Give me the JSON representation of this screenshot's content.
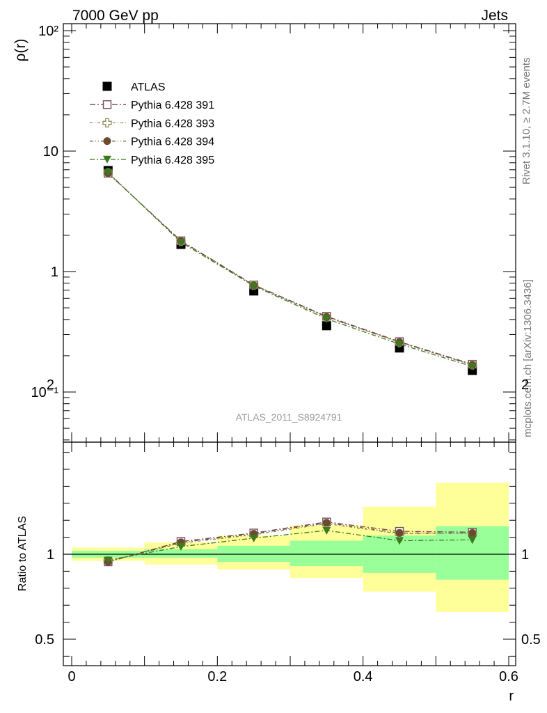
{
  "header": {
    "energy_label": "7000 GeV pp",
    "process_label": "Jets"
  },
  "side_labels": {
    "rivet": "Rivet 3.1.10, ≥ 2.7M events",
    "mcplots": "mcplots.cern.ch [arXiv:1306.3436]"
  },
  "analysis_label": "ATLAS_2011_S8924791",
  "colors": {
    "atlas": "#000000",
    "p391": "#7a4a5e",
    "p393": "#8c8c5a",
    "p394": "#6b4a2e",
    "p395": "#3d7a1e",
    "band_inner": "#99ff99",
    "band_outer": "#ffff99"
  },
  "chart_data": [
    {
      "type": "scatter",
      "name": "main",
      "ylabel": "ρ(r)",
      "y_scale": "log",
      "xlim": [
        0,
        0.6
      ],
      "ylim": [
        0.04,
        120
      ],
      "y_tick_labels": [
        "10⁻¹",
        "1",
        "10",
        "10²"
      ],
      "y_tick_values": [
        0.1,
        1,
        10,
        100
      ],
      "legend_position": "top-left",
      "x": [
        0.05,
        0.15,
        0.25,
        0.35,
        0.45,
        0.55
      ],
      "series": [
        {
          "name": "ATLAS",
          "key": "atlas",
          "marker": "square",
          "values": [
            6.9,
            1.68,
            0.69,
            0.355,
            0.232,
            0.151
          ]
        },
        {
          "name": "Pythia 6.428 391",
          "key": "p391",
          "marker": "open-square",
          "values": [
            6.55,
            1.8,
            0.775,
            0.425,
            0.262,
            0.17
          ]
        },
        {
          "name": "Pythia 6.428 393",
          "key": "p393",
          "marker": "open-cross",
          "values": [
            6.6,
            1.78,
            0.77,
            0.42,
            0.258,
            0.168
          ]
        },
        {
          "name": "Pythia 6.428 394",
          "key": "p394",
          "marker": "circle",
          "values": [
            6.55,
            1.8,
            0.77,
            0.42,
            0.26,
            0.168
          ]
        },
        {
          "name": "Pythia 6.428 395",
          "key": "p395",
          "marker": "triangle-down",
          "values": [
            6.65,
            1.75,
            0.76,
            0.405,
            0.25,
            0.163
          ]
        }
      ]
    },
    {
      "type": "line",
      "name": "ratio",
      "ylabel": "Ratio to ATLAS",
      "xlabel": "r",
      "xlim": [
        0,
        0.6
      ],
      "ylim": [
        0.4,
        2.4
      ],
      "x_tick_labels": [
        "0",
        "0.2",
        "0.4",
        "0.6"
      ],
      "x_tick_values": [
        0,
        0.2,
        0.4,
        0.6
      ],
      "y_tick_labels": [
        "0.5",
        "1",
        "2"
      ],
      "y_tick_values": [
        0.5,
        1,
        2
      ],
      "x": [
        0.05,
        0.15,
        0.25,
        0.35,
        0.45,
        0.55
      ],
      "bands": {
        "edges": [
          0,
          0.1,
          0.2,
          0.3,
          0.4,
          0.5,
          0.6
        ],
        "inner_low": [
          0.98,
          0.98,
          0.955,
          0.93,
          0.89,
          0.85
        ],
        "inner_high": [
          1.02,
          1.03,
          1.05,
          1.08,
          1.11,
          1.165
        ],
        "outer_low": [
          0.96,
          0.94,
          0.91,
          0.86,
          0.78,
          0.66
        ],
        "outer_high": [
          1.04,
          1.07,
          1.11,
          1.17,
          1.28,
          1.42
        ]
      },
      "series": [
        {
          "name": "Pythia 6.428 391",
          "key": "p391",
          "marker": "open-square",
          "values": [
            0.955,
            1.075,
            1.125,
            1.19,
            1.135,
            1.13
          ]
        },
        {
          "name": "Pythia 6.428 393",
          "key": "p393",
          "marker": "open-cross",
          "values": [
            0.96,
            1.065,
            1.115,
            1.18,
            1.12,
            1.125
          ]
        },
        {
          "name": "Pythia 6.428 394",
          "key": "p394",
          "marker": "circle",
          "values": [
            0.955,
            1.07,
            1.12,
            1.185,
            1.125,
            1.125
          ]
        },
        {
          "name": "Pythia 6.428 395",
          "key": "p395",
          "marker": "triangle-down",
          "values": [
            0.965,
            1.045,
            1.095,
            1.14,
            1.08,
            1.085
          ]
        }
      ]
    }
  ]
}
